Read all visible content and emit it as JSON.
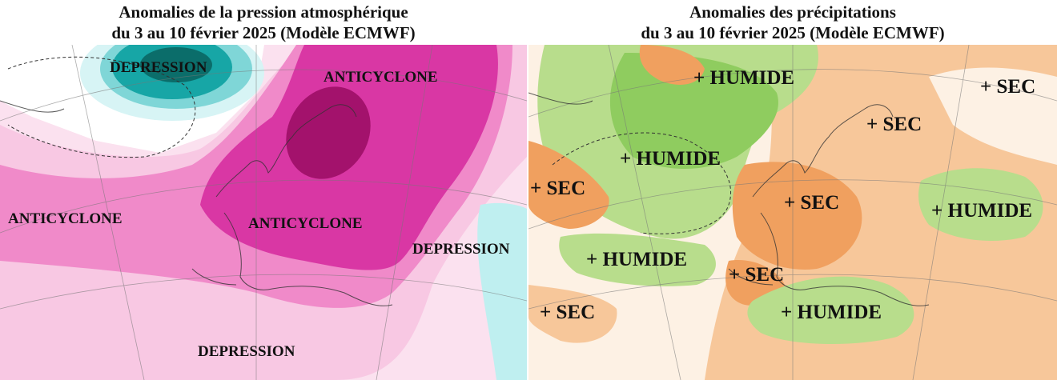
{
  "pressure_map": {
    "title_line1": "Anomalies de la pression atmosphérique",
    "title_line2": "du 3 au 10 février 2025 (Modèle ECMWF)",
    "labels": {
      "depression_north": "DEPRESSION",
      "anticyclone_scandinavia": "ANTICYCLONE",
      "anticyclone_atlantic": "ANTICYCLONE",
      "anticyclone_central_europe": "ANTICYCLONE",
      "depression_east": "DEPRESSION",
      "depression_south": "DEPRESSION"
    },
    "colors": {
      "strong_positive": "#a3126c",
      "positive": "#d937a4",
      "moderate_positive": "#f08ac9",
      "weak_positive": "#f8c8e3",
      "negative": "#17a6a6",
      "strong_negative": "#0b6d6a",
      "weak_negative": "#bfeff0"
    }
  },
  "precip_map": {
    "title_line1": "Anomalies des précipitations",
    "title_line2": "du 3 au 10 février 2025 (Modèle ECMWF)",
    "labels": {
      "humide_north": "+ HUMIDE",
      "sec_northeast": "+ SEC",
      "sec_scandinavia": "+ SEC",
      "humide_atlantic": "+ HUMIDE",
      "sec_west": "+ SEC",
      "sec_france": "+ SEC",
      "humide_east": "+ HUMIDE",
      "humide_azores": "+ HUMIDE",
      "sec_iberia": "+ SEC",
      "sec_southwest": "+ SEC",
      "humide_mediterranean": "+ HUMIDE"
    },
    "colors": {
      "wet": "#b8dd8c",
      "wet_strong": "#8fcc5f",
      "dry": "#f7c79a",
      "dry_strong": "#f0a05f"
    }
  }
}
